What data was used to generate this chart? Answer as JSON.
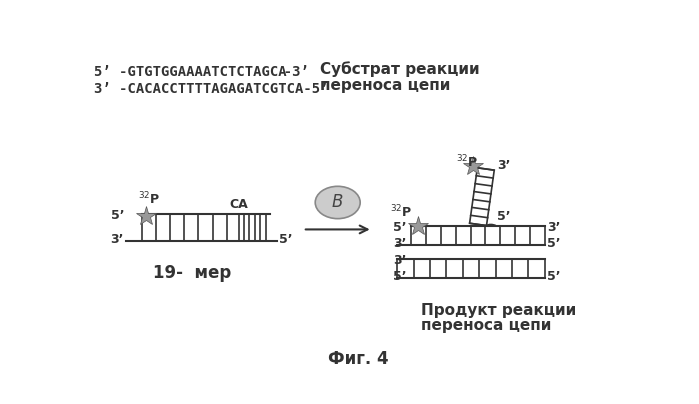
{
  "title": "Фиг. 4",
  "line1_seq": "5’ -GTGTGGAAAATCTCTAGCA",
  "line1_end": "  -3’",
  "line1_right": "Субстрат реакции",
  "line2_seq": "3’ -CACACCTTTTAGAGATCGTCA-5’",
  "line2_right": "переноса цепи",
  "label_19mer": "19-  мер",
  "label_product_1": "Продукт реакции",
  "label_product_2": "переноса цепи",
  "line_color": "#333333",
  "star_color": "#999999",
  "star_edge_color": "#555555",
  "ellipse_face": "#cccccc",
  "ellipse_edge": "#888888"
}
